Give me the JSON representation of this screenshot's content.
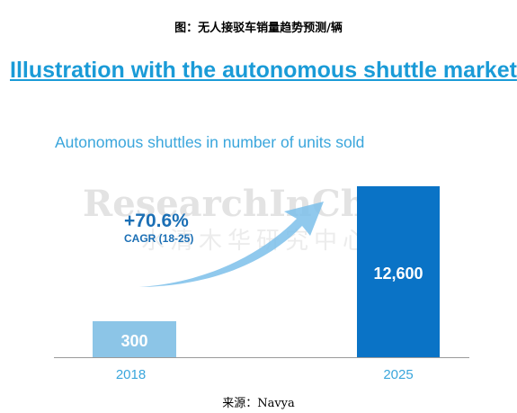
{
  "caption": "图：无人接驳车销量趋势预测/辆",
  "headline": "Illustration with the autonomous shuttle market",
  "watermark": {
    "latin": "ResearchInChina",
    "chinese": "水清木华研究中心"
  },
  "cagr": {
    "value": "+70.6%",
    "label": "CAGR (18-25)"
  },
  "source": "来源：Navya",
  "colors": {
    "bar_2018": "#8cc5e7",
    "bar_2025": "#0a73c6",
    "arrow": "#7cc0ea",
    "title": "#1a9bd7",
    "cagr": "#1b6fb5"
  },
  "chart_data": {
    "type": "bar",
    "title": "Autonomous shuttles in number of units sold",
    "categories": [
      "2018",
      "2025"
    ],
    "values": [
      300,
      12600
    ],
    "value_labels": [
      "300",
      "12,600"
    ],
    "xlabel": "",
    "ylabel": "",
    "grid": false,
    "legend": "none"
  }
}
